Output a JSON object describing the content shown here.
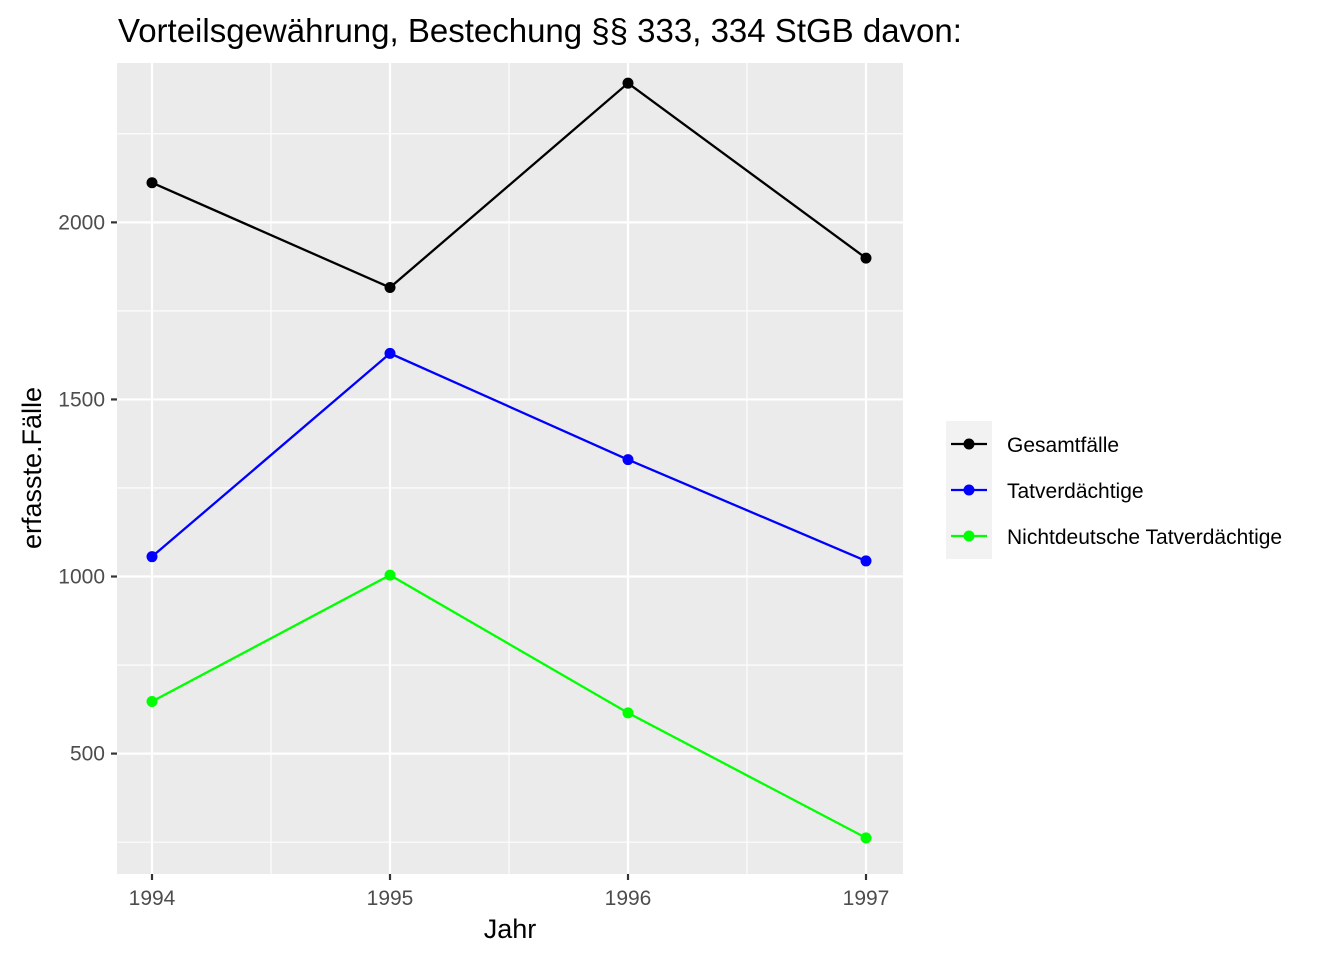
{
  "chart_data": {
    "type": "line",
    "title": "Vorteilsgewährung, Bestechung §§ 333, 334 StGB davon:",
    "xlabel": "Jahr",
    "ylabel": "erfasste.Fälle",
    "x": [
      1994,
      1995,
      1996,
      1997
    ],
    "x_ticks": [
      "1994",
      "1995",
      "1996",
      "1997"
    ],
    "y_ticks": [
      "500",
      "1000",
      "1500",
      "2000"
    ],
    "ylim": [
      160,
      2450
    ],
    "series": [
      {
        "name": "Gesamtfälle",
        "color": "#000000",
        "values": [
          2112,
          1816,
          2393,
          1899
        ]
      },
      {
        "name": "Tatverdächtige",
        "color": "#0000ff",
        "values": [
          1056,
          1630,
          1330,
          1044
        ]
      },
      {
        "name": "Nichtdeutsche Tatverdächtige",
        "color": "#00ff00",
        "values": [
          647,
          1004,
          615,
          262
        ]
      }
    ],
    "grid": true,
    "legend_position": "right"
  }
}
